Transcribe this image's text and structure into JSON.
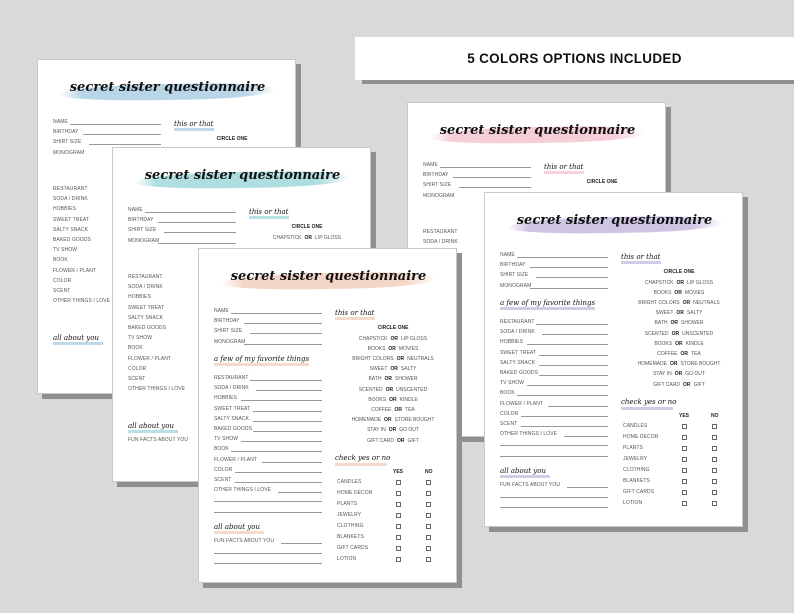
{
  "banner": {
    "text": "5 COLORS OPTIONS INCLUDED"
  },
  "pages": [
    {
      "color_name": "blue",
      "accent": "#7fb4d4"
    },
    {
      "color_name": "teal",
      "accent": "#6cc3c6"
    },
    {
      "color_name": "pink",
      "accent": "#eea7b8"
    },
    {
      "color_name": "purple",
      "accent": "#a795cc"
    },
    {
      "color_name": "peach",
      "accent": "#eab49b"
    }
  ],
  "questionnaire": {
    "title": "secret sister questionnaire",
    "basic_fields": [
      "NAME",
      "BIRTHDAY",
      "SHIRT SIZE",
      "MONOGRAM"
    ],
    "favorites_heading": "a few of my favorite things",
    "favorites": [
      "RESTAURANT",
      "SODA / DRINK",
      "HOBBIES",
      "SWEET TREAT",
      "SALTY SNACK",
      "BAKED GOODS",
      "TV SHOW",
      "BOOK",
      "FLOWER / PLANT",
      "COLOR",
      "SCENT",
      "OTHER THINGS I LOVE"
    ],
    "about_heading": "all about you",
    "about_field": "FUN FACTS ABOUT YOU",
    "this_or_that_heading": "this or that",
    "circle_one": "CIRCLE ONE",
    "or_word": "OR",
    "pairs": [
      [
        "CHAPSTICK",
        "LIP GLOSS"
      ],
      [
        "BOOKS",
        "MOVIES"
      ],
      [
        "BRIGHT COLORS",
        "NEUTRALS"
      ],
      [
        "SWEET",
        "SALTY"
      ],
      [
        "BATH",
        "SHOWER"
      ],
      [
        "SCENTED",
        "UNSCENTED"
      ],
      [
        "BOOKS",
        "KINDLE"
      ],
      [
        "COFFEE",
        "TEA"
      ],
      [
        "HOMEMADE",
        "STORE BOUGHT"
      ],
      [
        "STAY IN",
        "GO OUT"
      ],
      [
        "GIFT CARD",
        "GIFT"
      ]
    ],
    "check_heading": "check yes or no",
    "yes_label": "YES",
    "no_label": "NO",
    "check_items": [
      "CANDLES",
      "HOME DECOR",
      "PLANTS",
      "JEWELRY",
      "CLOTHING",
      "BLANKETS",
      "GIFT CARDS",
      "LOTION"
    ]
  }
}
